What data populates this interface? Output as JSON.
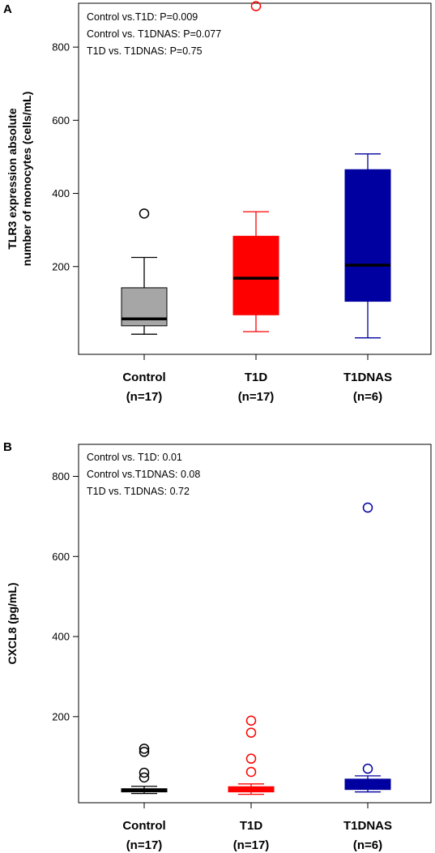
{
  "chart_data": [
    {
      "panel_label": "A",
      "type": "box",
      "ylabel_lines": [
        "TLR3 expression absolute",
        "number of monocytes (cells/mL)"
      ],
      "ylim": [
        -40,
        920
      ],
      "yticks": [
        200,
        400,
        600,
        800
      ],
      "annotations": [
        "Control vs.T1D: P=0.009",
        "Control vs. T1DNAS: P=0.077",
        "T1D vs. T1DNAS: P=0.75"
      ],
      "groups": [
        {
          "name": "Control",
          "n_label": "(n=17)",
          "fill": "#a6a6a6",
          "line": "#000000",
          "median_color": "#000000",
          "whisker_low": 15,
          "q1": 38,
          "median": 57,
          "q3": 142,
          "whisker_high": 225,
          "outliers": [
            345
          ]
        },
        {
          "name": "T1D",
          "n_label": "(n=17)",
          "fill": "#ff0000",
          "line": "#ff0000",
          "median_color": "#000000",
          "whisker_low": 22,
          "q1": 68,
          "median": 168,
          "q3": 283,
          "whisker_high": 350,
          "outliers": [
            912
          ]
        },
        {
          "name": "T1DNAS",
          "n_label": "(n=6)",
          "fill": "#0000a0",
          "line": "#0000a0",
          "median_color": "#000000",
          "whisker_low": 5,
          "q1": 105,
          "median": 204,
          "q3": 465,
          "whisker_high": 508,
          "outliers": []
        }
      ]
    },
    {
      "panel_label": "B",
      "type": "box",
      "ylabel_lines": [
        "CXCL8 (pg/mL)"
      ],
      "ylim": [
        -15,
        880
      ],
      "yticks": [
        200,
        400,
        600,
        800
      ],
      "annotations": [
        "Control vs. T1D: 0.01",
        "Control vs.T1DNAS: 0.08",
        "T1D vs. T1DNAS: 0.72"
      ],
      "groups": [
        {
          "name": "Control",
          "n_label": "(n=17)",
          "fill": "#000000",
          "line": "#000000",
          "median_color": "#000000",
          "whisker_low": 8,
          "q1": 12,
          "median": 15,
          "q3": 20,
          "whisker_high": 26,
          "outliers": [
            48,
            60,
            112,
            120
          ]
        },
        {
          "name": "T1D",
          "n_label": "(n=17)",
          "fill": "#ff0000",
          "line": "#ff0000",
          "median_color": "#ff0000",
          "whisker_low": 6,
          "q1": 12,
          "median": 18,
          "q3": 25,
          "whisker_high": 32,
          "outliers": [
            62,
            95,
            160,
            190
          ]
        },
        {
          "name": "T1DNAS",
          "n_label": "(n=6)",
          "fill": "#0000a0",
          "line": "#0000a0",
          "median_color": "#0000a0",
          "whisker_low": 12,
          "q1": 18,
          "median": 28,
          "q3": 44,
          "whisker_high": 52,
          "outliers": [
            70,
            722
          ]
        }
      ]
    }
  ]
}
